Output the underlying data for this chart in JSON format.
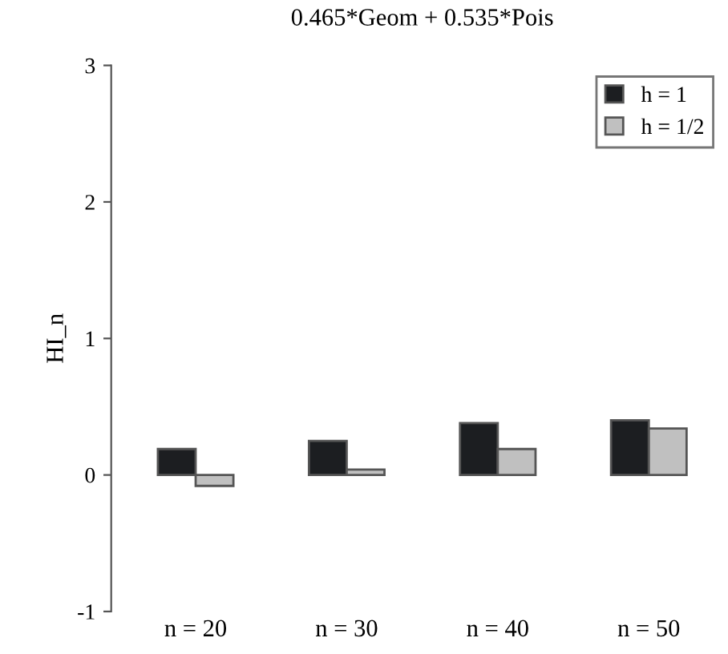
{
  "chart_data": {
    "type": "bar",
    "title": "0.465*Geom + 0.535*Pois",
    "ylabel": "HI_n",
    "categories": [
      "n = 20",
      "n = 30",
      "n = 40",
      "n = 50"
    ],
    "series": [
      {
        "name": "h = 1",
        "color": "#1c1e21",
        "values": [
          0.19,
          0.25,
          0.38,
          0.4
        ]
      },
      {
        "name": "h = 1/2",
        "color": "#c0c0c0",
        "values": [
          -0.08,
          0.04,
          0.19,
          0.34
        ]
      }
    ],
    "ylim": [
      -1,
      3
    ],
    "yticks": [
      -1,
      0,
      1,
      2,
      3
    ],
    "grid": false,
    "legend": "top right"
  }
}
